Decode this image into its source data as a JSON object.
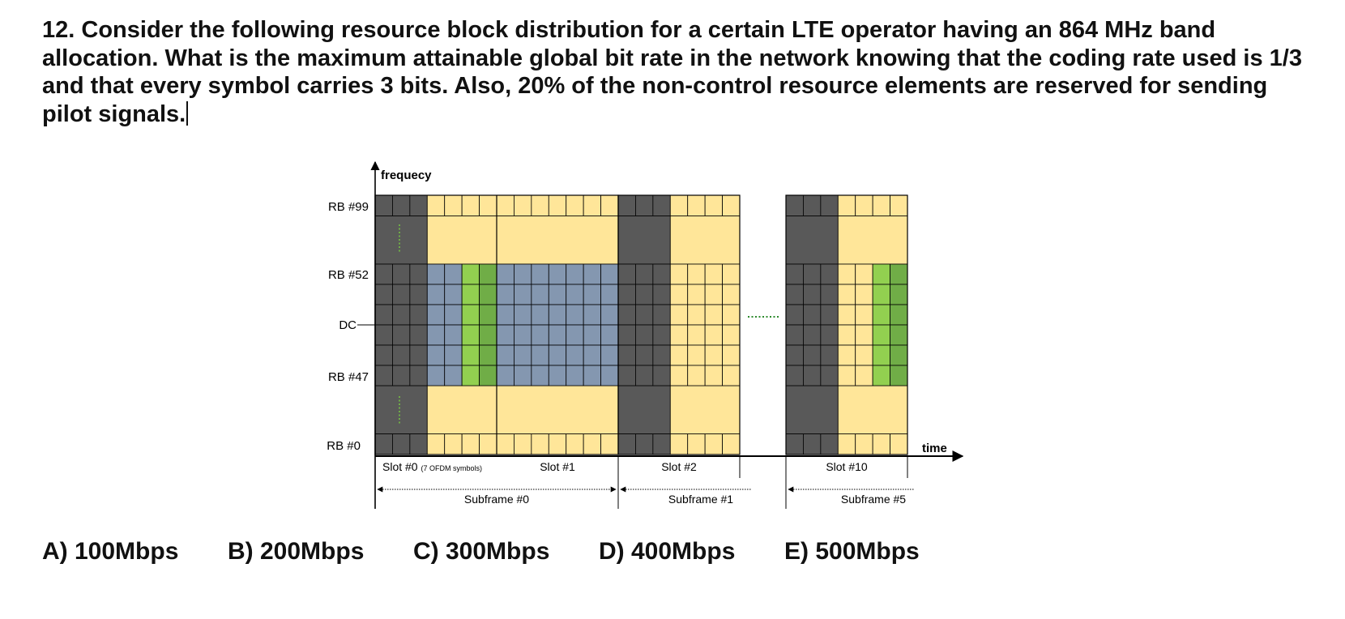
{
  "question": {
    "number": "12.",
    "text": "Consider the following resource block distribution for a certain LTE operator having an 864 MHz band allocation. What is the maximum attainable global bit rate in the network knowing that the coding rate used is 1/3 and that every symbol carries 3 bits. Also, 20% of the non-control resource elements are reserved for sending pilot signals."
  },
  "diagram": {
    "axis_y_label": "frequecy",
    "axis_x_label": "time",
    "rb_labels": [
      "RB #99",
      "RB #52",
      "DC",
      "RB #47",
      "RB #0"
    ],
    "slot_labels": [
      "Slot #0",
      "Slot #1",
      "Slot #2",
      "Slot #10"
    ],
    "slot0_note": "(7 OFDM symbols)",
    "subframe_labels": [
      "Subframe #0",
      "Subframe #1",
      "Subframe #5"
    ],
    "colors": {
      "control": "#595959",
      "data": "#ffe699",
      "allocated": "#8497b0",
      "pilot_light": "#92d050",
      "pilot_dark": "#70ad47",
      "grid": "#000000"
    }
  },
  "options": [
    {
      "letter": "A)",
      "value": "100Mbps"
    },
    {
      "letter": "B)",
      "value": "200Mbps"
    },
    {
      "letter": "C)",
      "value": "300Mbps"
    },
    {
      "letter": "D)",
      "value": "400Mbps"
    },
    {
      "letter": "E)",
      "value": "500Mbps"
    }
  ]
}
